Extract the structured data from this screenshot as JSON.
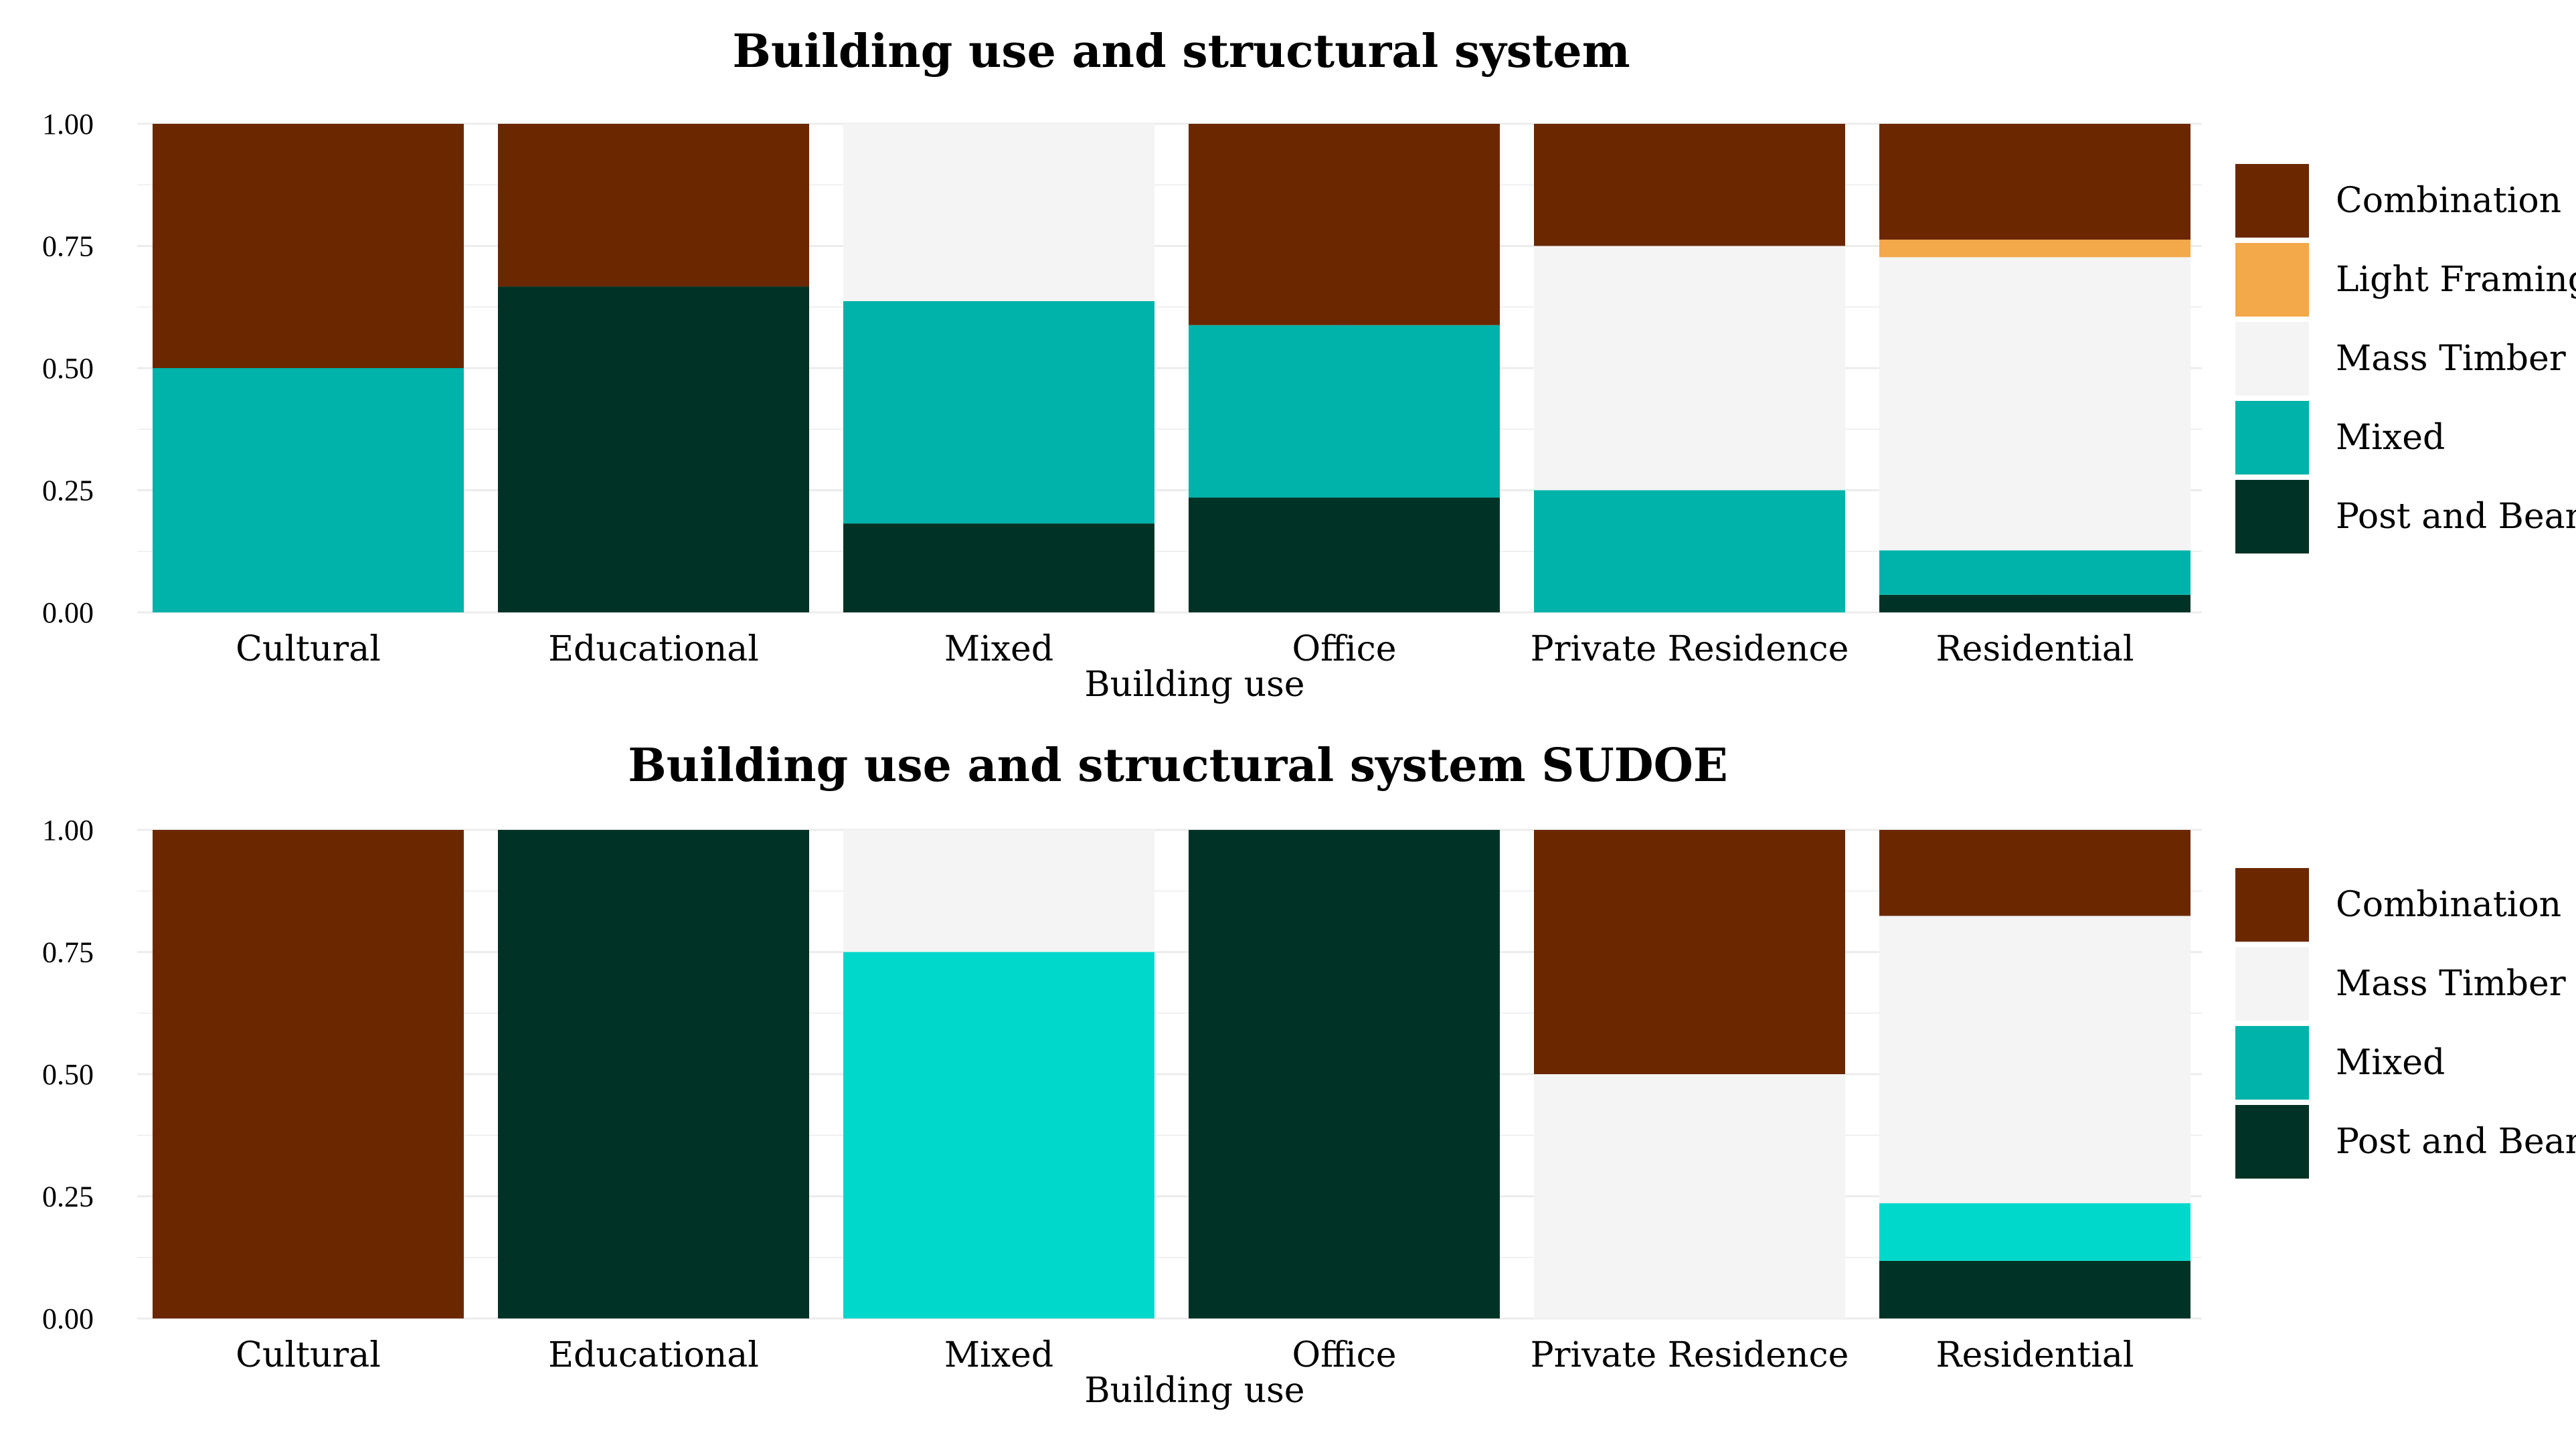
{
  "colors": {
    "Combination": "#6b2800",
    "Light Framing": "#f3a84a",
    "Mass Timber": "#f4f4f4",
    "Mixed": "#00b3aa",
    "Mixed SUDOE": "#00d8cc",
    "Post and Beam": "#003325",
    "grid": "#ececec"
  },
  "chart_data": [
    {
      "type": "bar",
      "stacked": true,
      "title": "Building use and structural system",
      "xlabel": "Building use",
      "ylabel": "",
      "ylim": [
        0,
        1
      ],
      "yticks": [
        "0.00",
        "0.25",
        "0.50",
        "0.75",
        "1.00"
      ],
      "legend_position": "right",
      "categories": [
        "Cultural",
        "Educational",
        "Mixed",
        "Office",
        "Private Residence",
        "Residential"
      ],
      "legend": [
        "Combination",
        "Light Framing",
        "Mass Timber",
        "Mixed",
        "Post and Beam"
      ],
      "series": [
        {
          "name": "Post and Beam",
          "values": [
            0.0,
            0.667,
            0.182,
            0.235,
            0.0,
            0.036
          ]
        },
        {
          "name": "Mixed",
          "values": [
            0.5,
            0.0,
            0.455,
            0.353,
            0.25,
            0.091
          ]
        },
        {
          "name": "Mass Timber",
          "values": [
            0.0,
            0.0,
            0.363,
            0.0,
            0.5,
            0.6
          ]
        },
        {
          "name": "Light Framing",
          "values": [
            0.0,
            0.0,
            0.0,
            0.0,
            0.0,
            0.036
          ]
        },
        {
          "name": "Combination",
          "values": [
            0.5,
            0.333,
            0.0,
            0.412,
            0.25,
            0.237
          ]
        }
      ]
    },
    {
      "type": "bar",
      "stacked": true,
      "title": "Building use and structural system SUDOE",
      "xlabel": "Building use",
      "ylabel": "",
      "ylim": [
        0,
        1
      ],
      "yticks": [
        "0.00",
        "0.25",
        "0.50",
        "0.75",
        "1.00"
      ],
      "legend_position": "right",
      "categories": [
        "Cultural",
        "Educational",
        "Mixed",
        "Office",
        "Private Residence",
        "Residential"
      ],
      "legend": [
        "Combination",
        "Mass Timber",
        "Mixed",
        "Post and Beam"
      ],
      "series": [
        {
          "name": "Post and Beam",
          "values": [
            0.0,
            1.0,
            0.0,
            1.0,
            0.0,
            0.118
          ]
        },
        {
          "name": "Mixed",
          "values": [
            0.0,
            0.0,
            0.75,
            0.0,
            0.0,
            0.118
          ]
        },
        {
          "name": "Mass Timber",
          "values": [
            0.0,
            0.0,
            0.25,
            0.0,
            0.5,
            0.588
          ]
        },
        {
          "name": "Combination",
          "values": [
            1.0,
            0.0,
            0.0,
            0.0,
            0.5,
            0.176
          ]
        }
      ]
    }
  ]
}
